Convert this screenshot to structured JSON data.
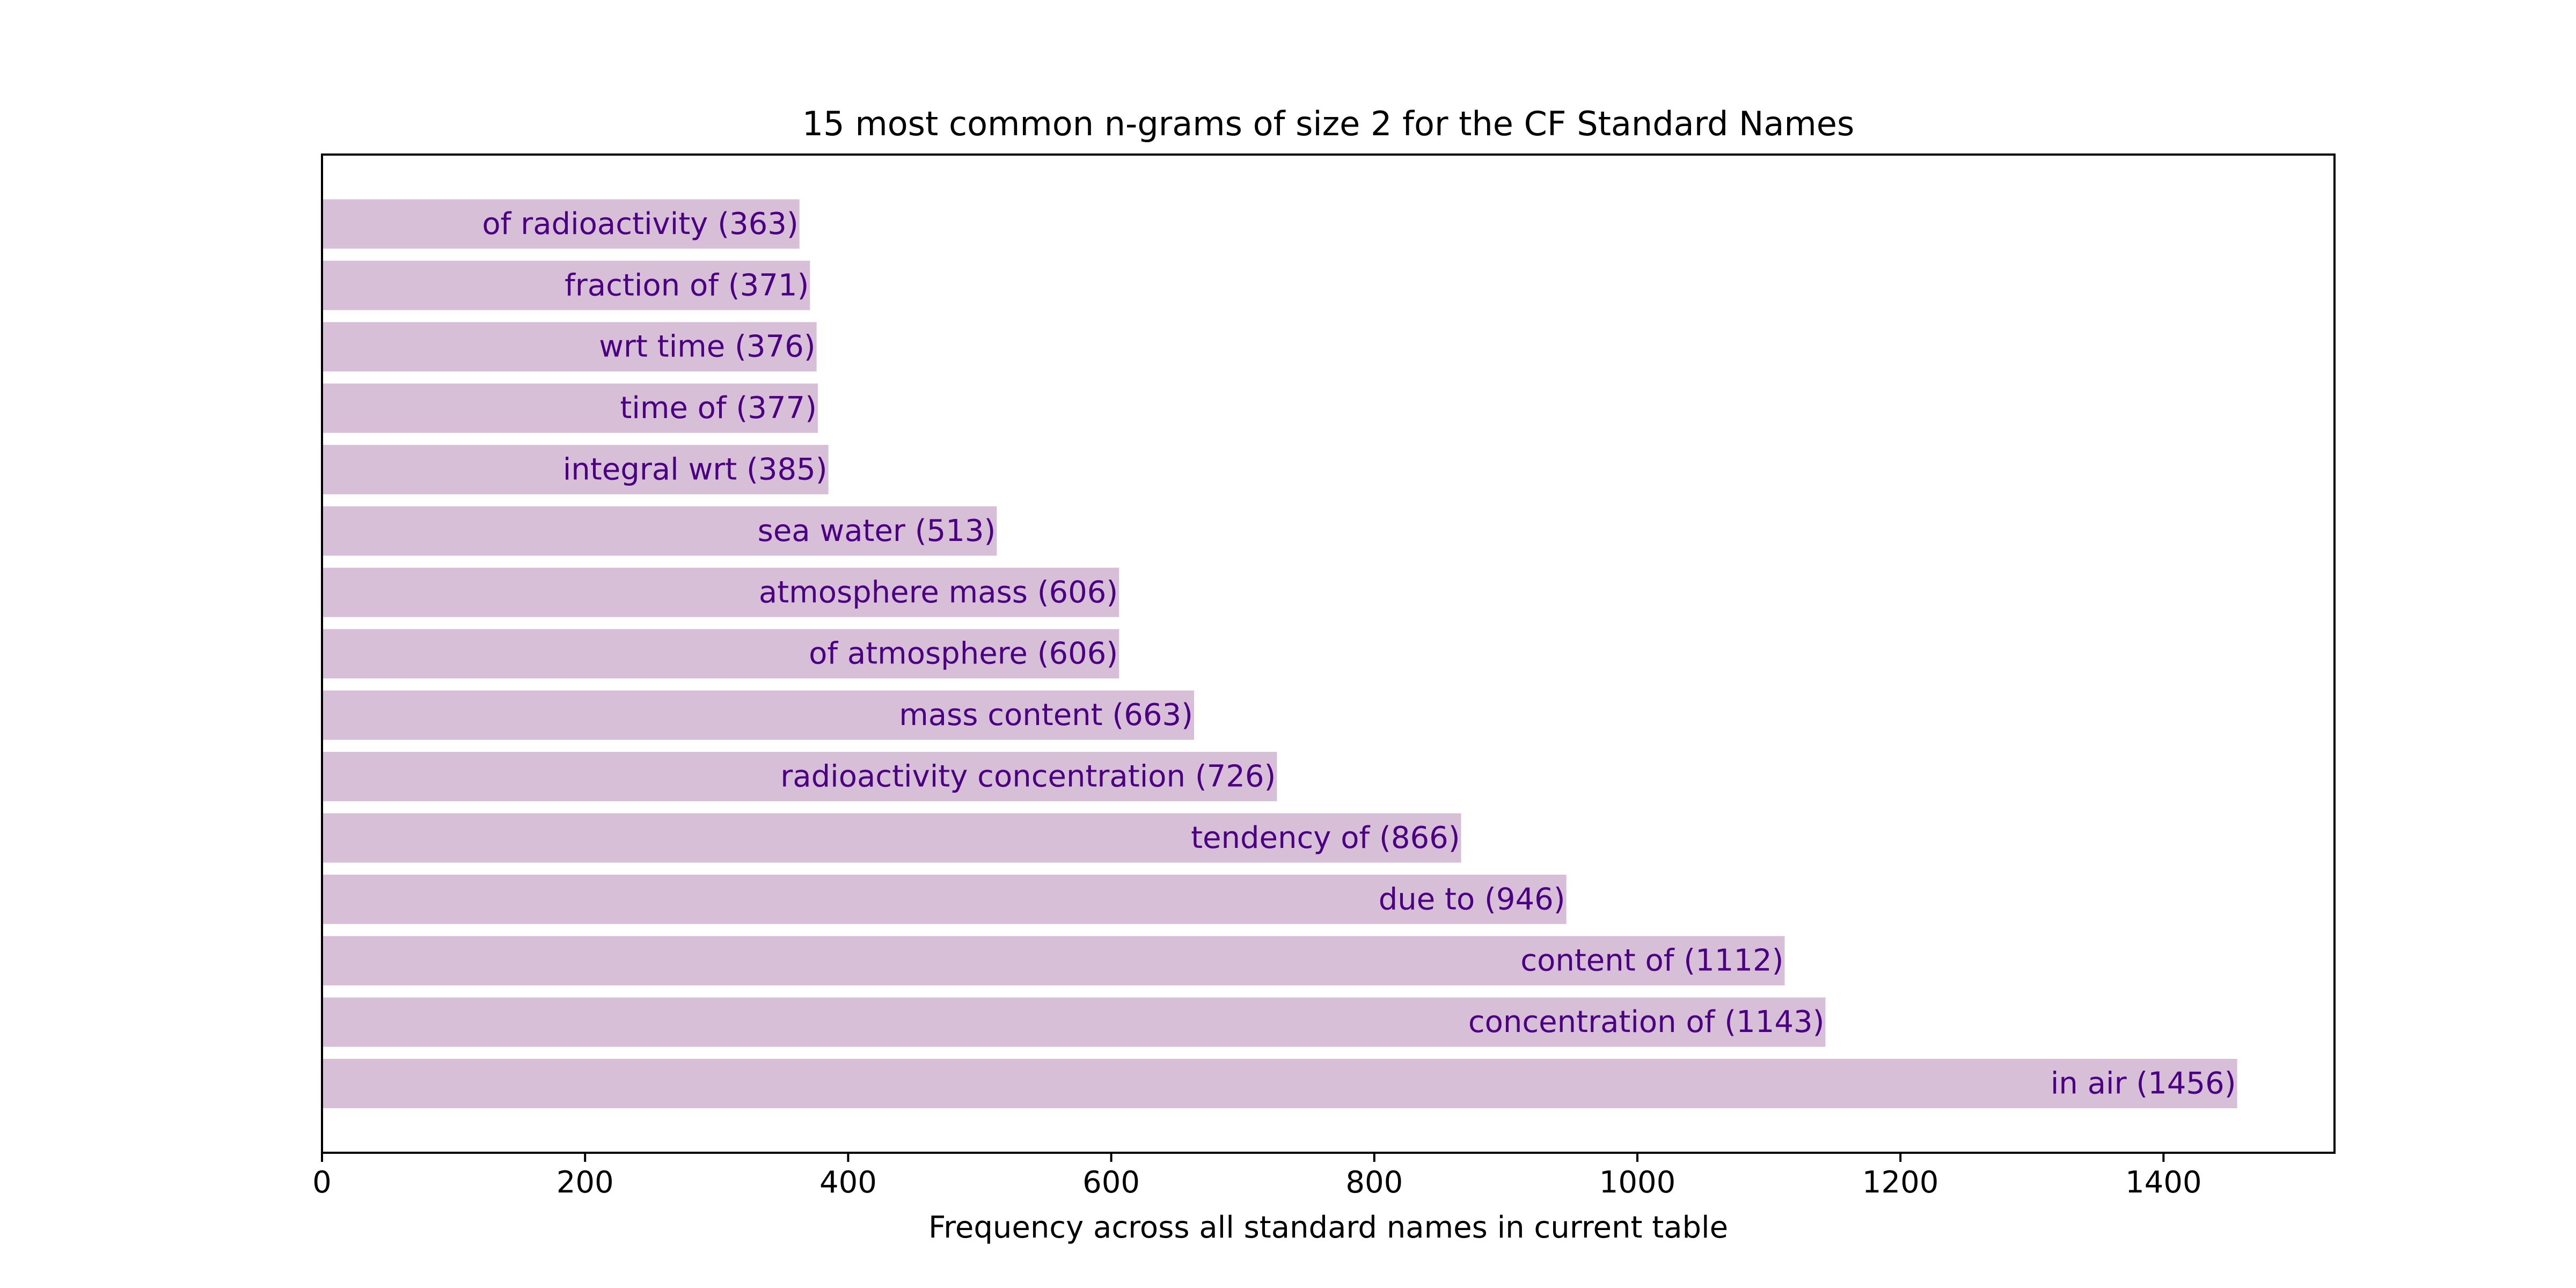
{
  "chart_data": {
    "type": "bar",
    "orientation": "horizontal",
    "title": "15 most common n-grams of size 2 for the CF Standard Names",
    "xlabel": "Frequency across all standard names in current table",
    "ylabel": "",
    "xlim": [
      0,
      1530
    ],
    "x_ticks": [
      0,
      200,
      400,
      600,
      800,
      1000,
      1200,
      1400
    ],
    "grid": false,
    "legend": "none",
    "categories": [
      "in air",
      "concentration of",
      "content of",
      "due to",
      "tendency of",
      "radioactivity concentration",
      "mass content",
      "of atmosphere",
      "atmosphere mass",
      "sea water",
      "integral wrt",
      "time of",
      "wrt time",
      "fraction of",
      "of radioactivity"
    ],
    "values": [
      1456,
      1143,
      1112,
      946,
      866,
      726,
      663,
      606,
      606,
      513,
      385,
      377,
      376,
      371,
      363
    ],
    "bar_labels": [
      "in air (1456)",
      "concentration of (1143)",
      "content of (1112)",
      "due to (946)",
      "tendency of (866)",
      "radioactivity concentration (726)",
      "mass content (663)",
      "of atmosphere (606)",
      "atmosphere mass (606)",
      "sea water (513)",
      "integral wrt (385)",
      "time of (377)",
      "wrt time (376)",
      "fraction of (371)",
      "of radioactivity (363)"
    ],
    "colors": {
      "bar": "#d8bfd8",
      "bar_label": "#4b0082",
      "axis": "#000000",
      "background": "#ffffff"
    }
  }
}
